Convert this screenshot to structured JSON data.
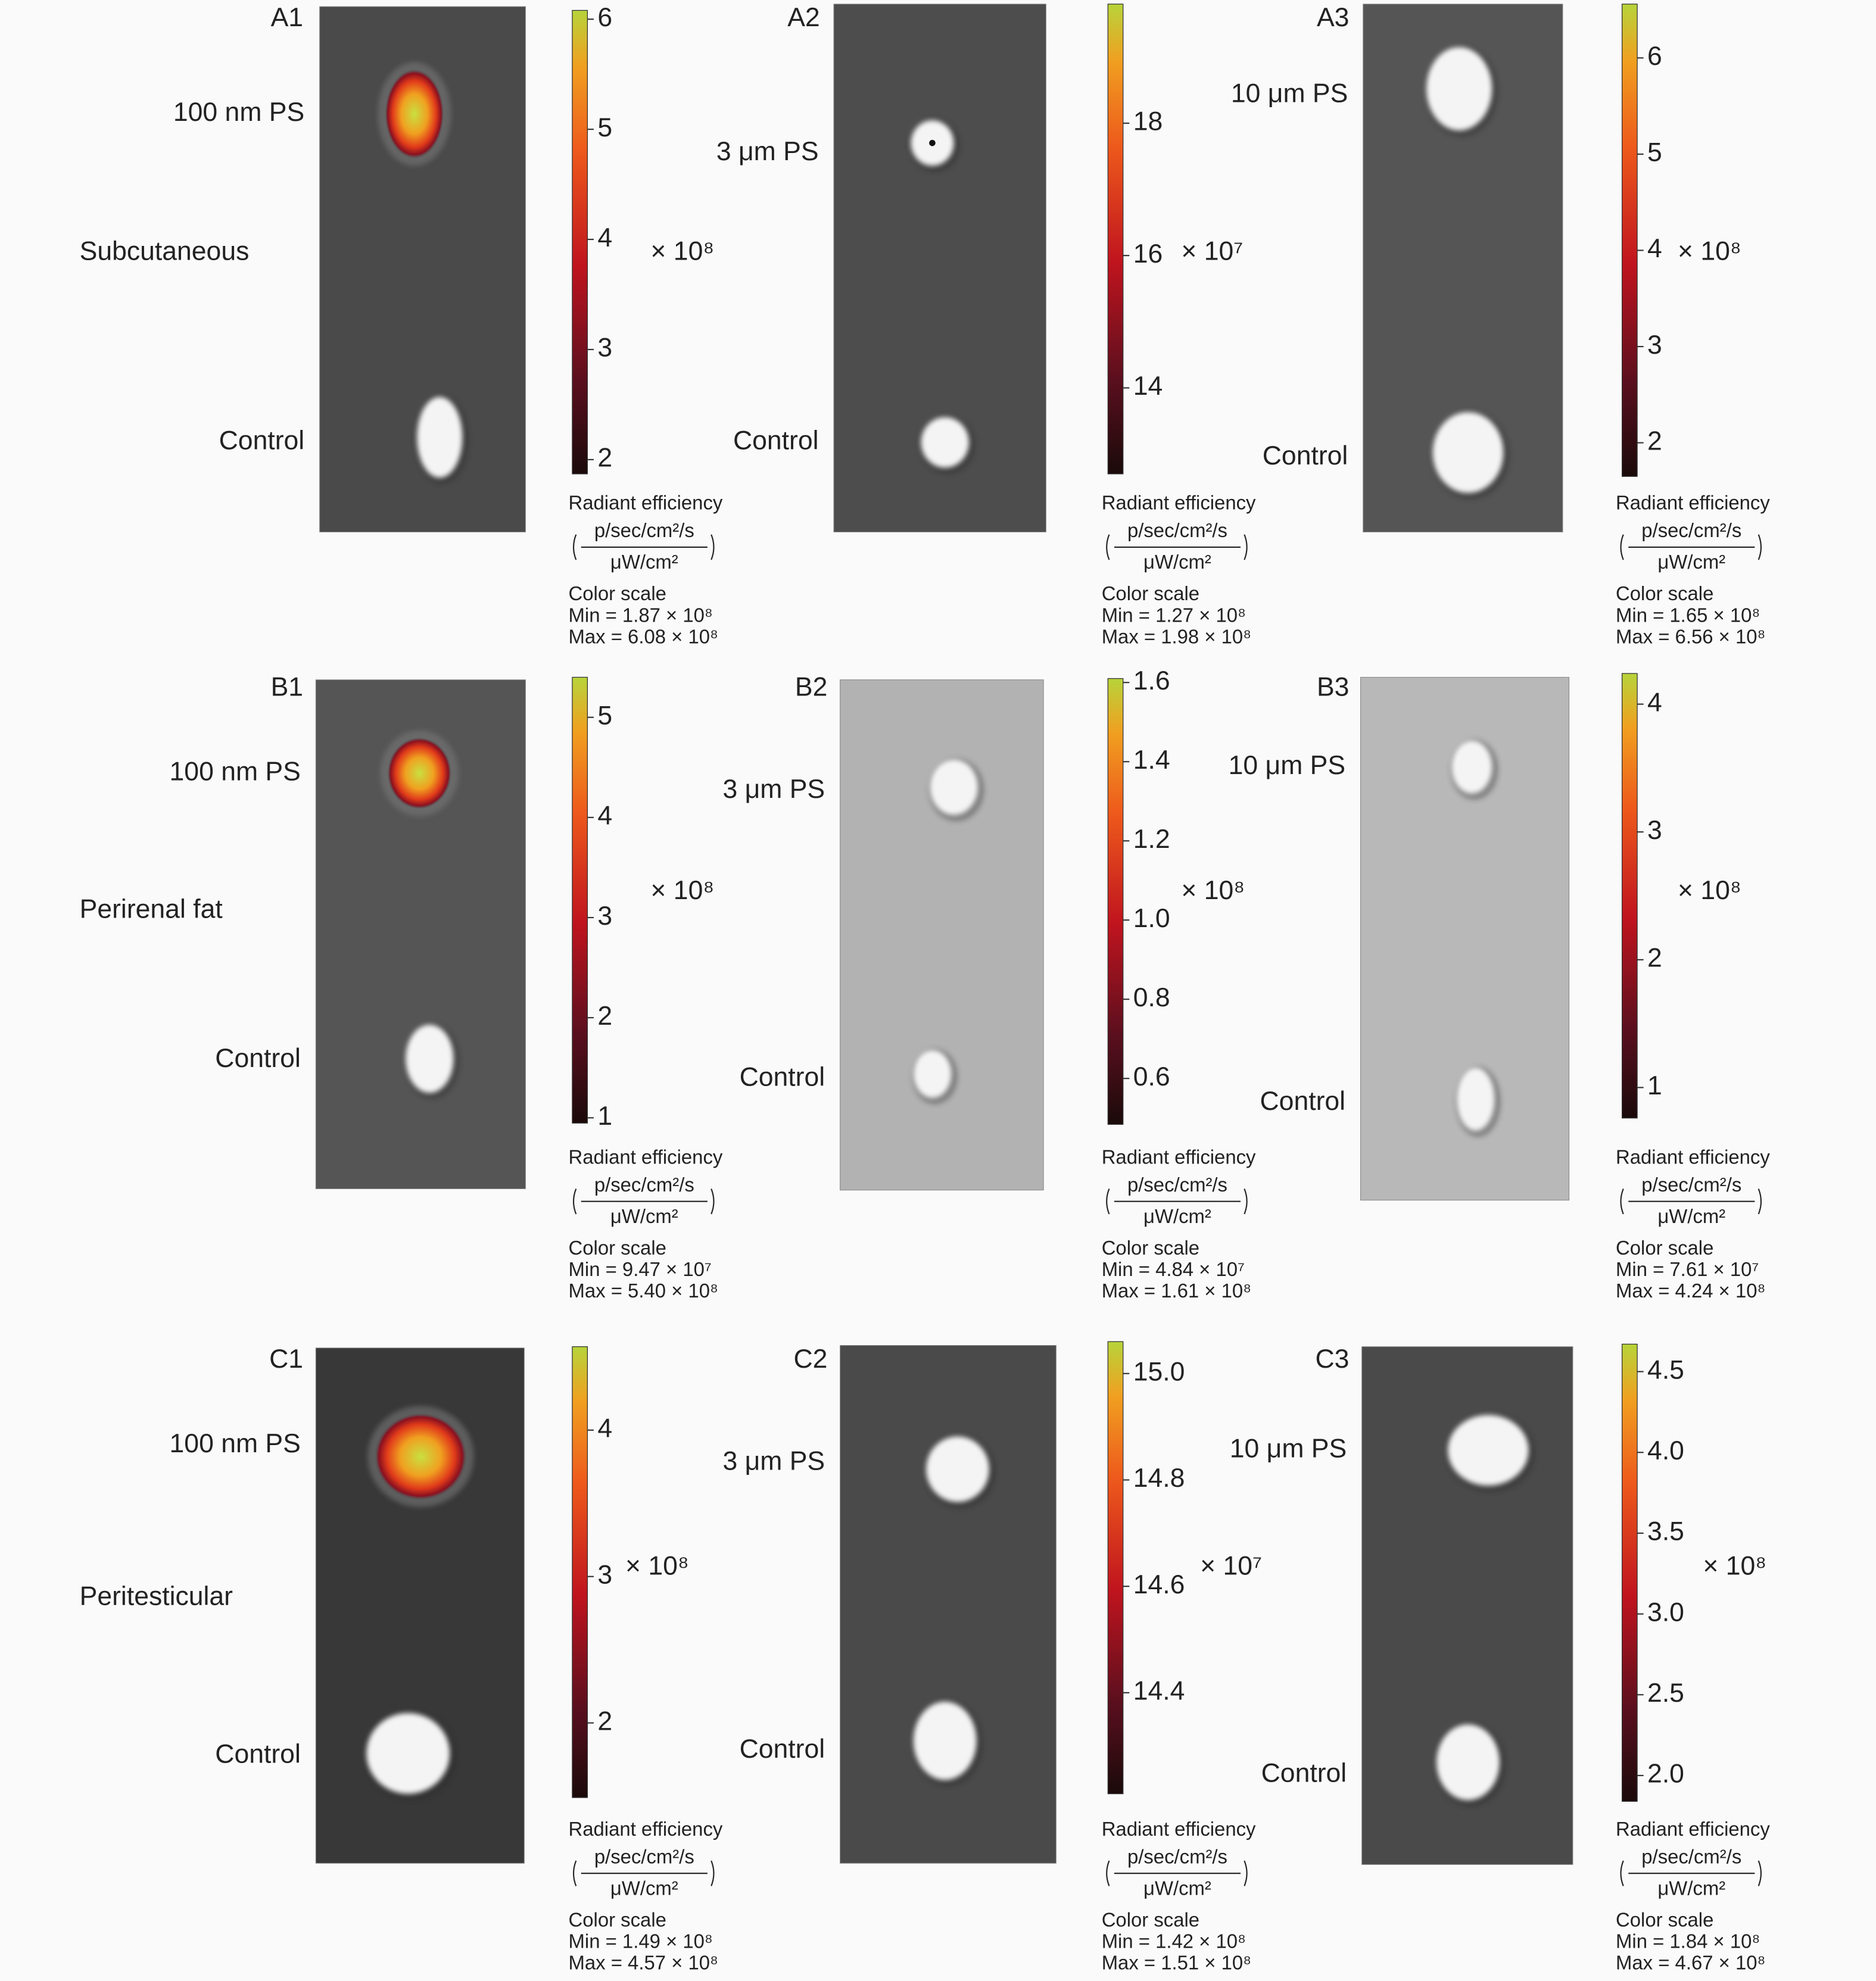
{
  "row_labels": [
    "Subcutaneous",
    "Perirenal fat",
    "Peritesticular"
  ],
  "panels": [
    {
      "label": "A1",
      "sample": "100 nm PS",
      "control": "Control",
      "colorbar": {
        "range": [
          1.87,
          6.08
        ],
        "ticks": [
          2,
          3,
          4,
          5,
          6
        ],
        "multiplier": "× 10⁸",
        "title": "Radiant efficiency",
        "unit_numerator": "p/sec/cm²/s",
        "unit_denominator": "μW/cm²",
        "scale_title": "Color scale",
        "min": "Min = 1.87 × 10⁸",
        "max": "Max = 6.08 × 10⁸"
      }
    },
    {
      "label": "A2",
      "sample": "3 μm PS",
      "control": "Control",
      "colorbar": {
        "range": [
          12.7,
          19.8
        ],
        "ticks": [
          14,
          16,
          18
        ],
        "multiplier": "× 10⁷",
        "title": "Radiant efficiency",
        "unit_numerator": "p/sec/cm²/s",
        "unit_denominator": "μW/cm²",
        "scale_title": "Color scale",
        "min": "Min = 1.27 × 10⁸",
        "max": "Max = 1.98 × 10⁸"
      }
    },
    {
      "label": "A3",
      "sample": "10 μm PS",
      "control": "Control",
      "colorbar": {
        "range": [
          1.65,
          6.56
        ],
        "ticks": [
          2,
          3,
          4,
          5,
          6
        ],
        "multiplier": "× 10⁸",
        "title": "Radiant efficiency",
        "unit_numerator": "p/sec/cm²/s",
        "unit_denominator": "μW/cm²",
        "scale_title": "Color scale",
        "min": "Min = 1.65 × 10⁸",
        "max": "Max = 6.56 × 10⁸"
      }
    },
    {
      "label": "B1",
      "sample": "100 nm PS",
      "control": "Control",
      "colorbar": {
        "range": [
          0.947,
          5.4
        ],
        "ticks": [
          1,
          2,
          3,
          4,
          5
        ],
        "multiplier": "× 10⁸",
        "title": "Radiant efficiency",
        "unit_numerator": "p/sec/cm²/s",
        "unit_denominator": "μW/cm²",
        "scale_title": "Color scale",
        "min": "Min = 9.47 × 10⁷",
        "max": "Max = 5.40 × 10⁸"
      }
    },
    {
      "label": "B2",
      "sample": "3 μm PS",
      "control": "Control",
      "colorbar": {
        "range": [
          0.484,
          1.61
        ],
        "ticks": [
          0.6,
          0.8,
          {
            "value": 1,
            "label": "1.0"
          },
          1.2,
          1.4,
          1.6
        ],
        "multiplier": "× 10⁸",
        "title": "Radiant efficiency",
        "unit_numerator": "p/sec/cm²/s",
        "unit_denominator": "μW/cm²",
        "scale_title": "Color scale",
        "min": "Min = 4.84 × 10⁷",
        "max": "Max = 1.61 × 10⁸"
      }
    },
    {
      "label": "B3",
      "sample": "10 μm PS",
      "control": "Control",
      "colorbar": {
        "range": [
          0.761,
          4.24
        ],
        "ticks": [
          1,
          2,
          3,
          4
        ],
        "multiplier": "× 10⁸",
        "title": "Radiant efficiency",
        "unit_numerator": "p/sec/cm²/s",
        "unit_denominator": "μW/cm²",
        "scale_title": "Color scale",
        "min": "Min = 7.61 × 10⁷",
        "max": "Max = 4.24 × 10⁸"
      }
    },
    {
      "label": "C1",
      "sample": "100 nm PS",
      "control": "Control",
      "colorbar": {
        "range": [
          1.49,
          4.57
        ],
        "ticks": [
          2,
          3,
          4
        ],
        "multiplier": "× 10⁸",
        "title": "Radiant efficiency",
        "unit_numerator": "p/sec/cm²/s",
        "unit_denominator": "μW/cm²",
        "scale_title": "Color scale",
        "min": "Min = 1.49 × 10⁸",
        "max": "Max = 4.57 × 10⁸"
      }
    },
    {
      "label": "C2",
      "sample": "3 μm PS",
      "control": "Control",
      "colorbar": {
        "range": [
          14.21,
          15.06
        ],
        "ticks": [
          14.4,
          14.6,
          14.8,
          {
            "value": 15,
            "label": "15.0"
          }
        ],
        "multiplier": "× 10⁷",
        "title": "Radiant efficiency",
        "unit_numerator": "p/sec/cm²/s",
        "unit_denominator": "μW/cm²",
        "scale_title": "Color scale",
        "min": "Min = 1.42 × 10⁸",
        "max": "Max = 1.51 × 10⁸"
      }
    },
    {
      "label": "C3",
      "sample": "10 μm PS",
      "control": "Control",
      "colorbar": {
        "range": [
          1.84,
          4.67
        ],
        "ticks": [
          {
            "value": 2,
            "label": "2.0"
          },
          2.5,
          {
            "value": 3,
            "label": "3.0"
          },
          3.5,
          {
            "value": 4,
            "label": "4.0"
          },
          4.5
        ],
        "multiplier": "× 10⁸",
        "title": "Radiant efficiency",
        "unit_numerator": "p/sec/cm²/s",
        "unit_denominator": "μW/cm²",
        "scale_title": "Color scale",
        "min": "Min = 1.84 × 10⁸",
        "max": "Max = 4.67 × 10⁸"
      }
    }
  ]
}
